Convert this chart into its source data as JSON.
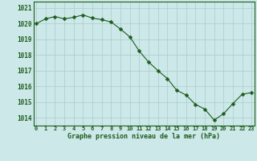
{
  "hours": [
    0,
    1,
    2,
    3,
    4,
    5,
    6,
    7,
    8,
    9,
    10,
    11,
    12,
    13,
    14,
    15,
    16,
    17,
    18,
    19,
    20,
    21,
    22,
    23
  ],
  "pressure": [
    1020.0,
    1020.3,
    1020.45,
    1020.3,
    1020.4,
    1020.55,
    1020.35,
    1020.25,
    1020.1,
    1019.65,
    1019.15,
    1018.25,
    1017.55,
    1017.0,
    1016.5,
    1015.75,
    1015.45,
    1014.85,
    1014.55,
    1013.85,
    1014.25,
    1014.9,
    1015.5,
    1015.6
  ],
  "line_color": "#1e5c1e",
  "marker": "D",
  "marker_size": 2.5,
  "bg_color": "#cce8e8",
  "grid_color": "#aacccc",
  "title": "Graphe pression niveau de la mer (hPa)",
  "title_color": "#1e5c1e",
  "ylim": [
    1013.5,
    1021.4
  ],
  "yticks": [
    1014,
    1015,
    1016,
    1017,
    1018,
    1019,
    1020,
    1021
  ],
  "xtick_labels": [
    "0",
    "1",
    "2",
    "3",
    "4",
    "5",
    "6",
    "7",
    "8",
    "9",
    "10",
    "11",
    "12",
    "13",
    "14",
    "15",
    "16",
    "17",
    "18",
    "19",
    "20",
    "21",
    "22",
    "23"
  ],
  "tick_color": "#1e5c1e",
  "border_color": "#1e5c1e",
  "tick_fontsize": 5.0,
  "title_fontsize": 6.0,
  "ytick_fontsize": 5.5
}
